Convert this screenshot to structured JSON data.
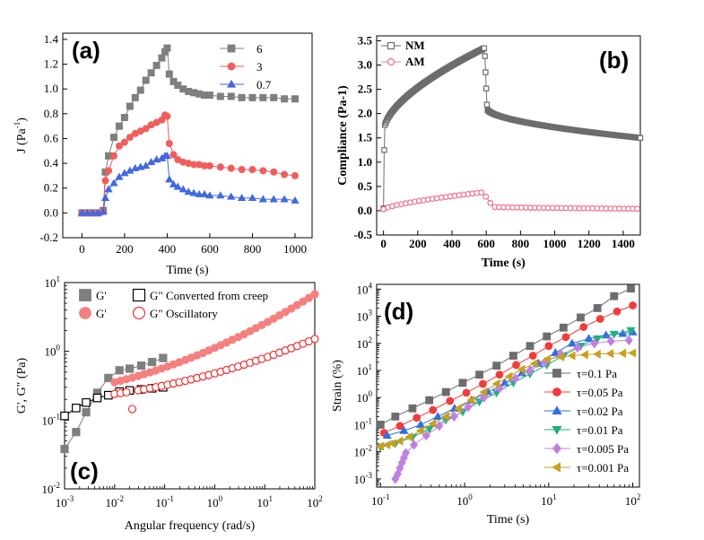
{
  "chart_data": [
    {
      "panel": "(a)",
      "type": "line",
      "xlabel": "Time (s)",
      "ylabel": "J (Pa",
      "ylabel_sup": "-1",
      "ylabel_end": ")",
      "xlim": [
        -90,
        1080
      ],
      "ylim": [
        -0.2,
        1.45
      ],
      "xticks": [
        0,
        200,
        400,
        600,
        800,
        1000
      ],
      "yticks": [
        -0.2,
        0.0,
        0.2,
        0.4,
        0.6,
        0.8,
        1.0,
        1.2,
        1.4
      ],
      "ytick_labels": [
        "-0.2",
        "0.0",
        "0.2",
        "0.4",
        "0.6",
        "0.8",
        "1.0",
        "1.2",
        "1.4"
      ],
      "legend_position": "top-right",
      "series": [
        {
          "name": "6",
          "color": "#7f7f7f",
          "marker": "square",
          "x": [
            0,
            25,
            50,
            75,
            100,
            110,
            125,
            150,
            175,
            200,
            225,
            250,
            275,
            300,
            325,
            350,
            375,
            390,
            400,
            410,
            430,
            450,
            475,
            500,
            525,
            550,
            575,
            600,
            650,
            700,
            750,
            800,
            850,
            900,
            950,
            1000
          ],
          "y": [
            0.0,
            0.0,
            0.0,
            0.0,
            0.02,
            0.33,
            0.46,
            0.61,
            0.7,
            0.77,
            0.86,
            0.93,
            0.99,
            1.07,
            1.13,
            1.19,
            1.25,
            1.3,
            1.33,
            1.12,
            1.06,
            1.03,
            1.0,
            0.98,
            0.97,
            0.96,
            0.95,
            0.95,
            0.94,
            0.94,
            0.93,
            0.93,
            0.93,
            0.93,
            0.92,
            0.92
          ]
        },
        {
          "name": "3",
          "color": "#f05d5d",
          "marker": "circle",
          "x": [
            0,
            25,
            50,
            75,
            100,
            110,
            125,
            150,
            175,
            200,
            225,
            250,
            275,
            300,
            325,
            350,
            375,
            390,
            400,
            410,
            430,
            450,
            475,
            500,
            525,
            550,
            575,
            600,
            650,
            700,
            750,
            800,
            850,
            900,
            950,
            1000
          ],
          "y": [
            0.0,
            0.0,
            0.0,
            0.0,
            0.01,
            0.26,
            0.34,
            0.46,
            0.54,
            0.57,
            0.61,
            0.64,
            0.66,
            0.68,
            0.71,
            0.73,
            0.75,
            0.79,
            0.78,
            0.56,
            0.47,
            0.43,
            0.41,
            0.4,
            0.39,
            0.39,
            0.38,
            0.38,
            0.37,
            0.36,
            0.35,
            0.35,
            0.34,
            0.33,
            0.31,
            0.3
          ]
        },
        {
          "name": "0.7",
          "color": "#4169e1",
          "marker": "triangle-up",
          "x": [
            0,
            25,
            50,
            75,
            100,
            110,
            125,
            150,
            175,
            200,
            225,
            250,
            275,
            300,
            325,
            350,
            375,
            390,
            400,
            410,
            430,
            450,
            475,
            500,
            525,
            550,
            575,
            600,
            650,
            700,
            750,
            800,
            850,
            900,
            950,
            1000
          ],
          "y": [
            0.0,
            0.0,
            0.0,
            0.0,
            0.01,
            0.12,
            0.19,
            0.24,
            0.29,
            0.32,
            0.34,
            0.36,
            0.37,
            0.38,
            0.41,
            0.43,
            0.44,
            0.46,
            0.46,
            0.27,
            0.23,
            0.21,
            0.19,
            0.17,
            0.16,
            0.15,
            0.15,
            0.14,
            0.14,
            0.13,
            0.12,
            0.12,
            0.11,
            0.11,
            0.11,
            0.1
          ]
        }
      ]
    },
    {
      "panel": "(b)",
      "type": "line",
      "xlabel": "Time (s)",
      "ylabel": "Compliance (Pa-1)",
      "xlim": [
        -40,
        1500
      ],
      "ylim": [
        -0.5,
        3.6
      ],
      "xticks": [
        0,
        200,
        400,
        600,
        800,
        1000,
        1200,
        1400
      ],
      "yticks": [
        -0.5,
        0.0,
        0.5,
        1.0,
        1.5,
        2.0,
        2.5,
        3.0,
        3.5
      ],
      "ytick_labels": [
        "-0.5",
        "0.0",
        "0.5",
        "1.0",
        "1.5",
        "2.0",
        "2.5",
        "3.0",
        "3.5"
      ],
      "legend_position": "top-left",
      "series": [
        {
          "name": "NM",
          "color": "#6d6d6d",
          "marker": "square-open"
        },
        {
          "name": "AM",
          "color": "#f07088",
          "marker": "circle-open"
        }
      ]
    },
    {
      "panel": "(c)",
      "type": "scatter",
      "xlabel": "Angular frequency (rad/s)",
      "ylabel": "G', G\" (Pa)",
      "xscale": "log",
      "yscale": "log",
      "xlim": [
        0.001,
        100
      ],
      "ylim": [
        0.01,
        10
      ],
      "xticks": [
        0.001,
        0.01,
        0.1,
        1,
        10,
        100
      ],
      "xtick_base": [
        "10",
        "10",
        "10",
        "10",
        "10",
        "10"
      ],
      "xtick_exp": [
        "-3",
        "-2",
        "-1",
        "0",
        "1",
        "2"
      ],
      "yticks": [
        0.01,
        0.1,
        1,
        10
      ],
      "ytick_base": [
        "10",
        "10",
        "10",
        "10"
      ],
      "ytick_exp": [
        "-2",
        "-1",
        "0",
        "1"
      ],
      "legend_position": "top-left",
      "series": [
        {
          "name": "G'",
          "color": "#7f7f7f",
          "marker": "square",
          "x": [
            0.001,
            0.0017,
            0.0027,
            0.0045,
            0.0075,
            0.0125,
            0.02,
            0.034,
            0.056,
            0.093
          ],
          "y": [
            0.038,
            0.067,
            0.13,
            0.25,
            0.41,
            0.53,
            0.56,
            0.62,
            0.7,
            0.8
          ]
        },
        {
          "name": "G\" Converted from creep",
          "color": "#000000",
          "marker": "square-open",
          "x": [
            0.001,
            0.0017,
            0.0027,
            0.0045,
            0.0075,
            0.0125,
            0.02,
            0.034,
            0.056,
            0.093
          ],
          "y": [
            0.115,
            0.15,
            0.18,
            0.21,
            0.23,
            0.26,
            0.27,
            0.28,
            0.29,
            0.3
          ]
        },
        {
          "name": "G'",
          "color": "#f58080",
          "marker": "circle"
        },
        {
          "name": "G\" Oscillatory",
          "color": "#ee3030",
          "marker": "circle-open"
        }
      ]
    },
    {
      "panel": "(d)",
      "type": "line",
      "xlabel": "Time (s)",
      "ylabel": "Strain (%)",
      "xscale": "log",
      "yscale": "log",
      "xlim": [
        0.09,
        120
      ],
      "ylim": [
        0.0005,
        15000
      ],
      "xticks": [
        0.1,
        1,
        10,
        100
      ],
      "xtick_base": [
        "10",
        "10",
        "10",
        "10"
      ],
      "xtick_exp": [
        "-1",
        "0",
        "1",
        "2"
      ],
      "yticks": [
        0.001,
        0.01,
        0.1,
        1,
        10,
        100,
        1000,
        10000
      ],
      "ytick_base": [
        "10",
        "10",
        "10",
        "10",
        "10",
        "10",
        "10",
        "10"
      ],
      "ytick_exp": [
        "-3",
        "-2",
        "-1",
        "0",
        "1",
        "2",
        "3",
        "4"
      ],
      "legend_position": "bottom-right",
      "series": [
        {
          "name": "τ=0.1 Pa",
          "color": "#6d6d6d",
          "marker": "square",
          "x": [
            0.1,
            0.15,
            0.24,
            0.38,
            0.6,
            0.95,
            1.5,
            2.4,
            3.8,
            6,
            9.5,
            15,
            24,
            38,
            60,
            95
          ],
          "y": [
            0.1,
            0.2,
            0.4,
            0.8,
            1.6,
            3.5,
            7,
            15,
            35,
            80,
            180,
            380,
            900,
            2000,
            5500,
            10500
          ]
        },
        {
          "name": "τ=0.05 Pa",
          "color": "#f03c3c",
          "marker": "circle",
          "x": [
            0.11,
            0.17,
            0.27,
            0.42,
            0.67,
            1.05,
            1.65,
            2.6,
            4.1,
            6.5,
            10,
            16,
            26,
            41,
            65,
            100
          ],
          "y": [
            0.05,
            0.09,
            0.18,
            0.35,
            0.75,
            1.5,
            3.2,
            7,
            16,
            35,
            80,
            170,
            400,
            800,
            1500,
            2500
          ]
        },
        {
          "name": "τ=0.02 Pa",
          "color": "#2f6fe0",
          "marker": "triangle-up",
          "x": [
            0.12,
            0.19,
            0.3,
            0.48,
            0.76,
            1.2,
            1.9,
            3,
            4.8,
            7.6,
            12,
            19,
            30,
            48,
            76,
            100
          ],
          "y": [
            0.04,
            0.06,
            0.1,
            0.2,
            0.4,
            0.8,
            1.6,
            3.5,
            8,
            18,
            45,
            100,
            150,
            200,
            230,
            260
          ]
        },
        {
          "name": "τ=0.01 Pa",
          "color": "#20b080",
          "marker": "triangle-down",
          "x": [
            0.1,
            0.15,
            0.24,
            0.38,
            0.6,
            0.95,
            1.5,
            2.4,
            3.8,
            6,
            9.5,
            15,
            24,
            38,
            60,
            95
          ],
          "y": [
            0.015,
            0.02,
            0.035,
            0.07,
            0.15,
            0.3,
            0.7,
            1.5,
            3.5,
            7.5,
            16,
            35,
            80,
            150,
            220,
            300
          ]
        },
        {
          "name": "τ=0.005 Pa",
          "color": "#c080e0",
          "marker": "diamond",
          "x": [
            0.15,
            0.16,
            0.17,
            0.18,
            0.19,
            0.2,
            0.25,
            0.35,
            0.5,
            0.75,
            1.1,
            1.7,
            2.6,
            4,
            6,
            9,
            14,
            22,
            35,
            55,
            90
          ],
          "y": [
            0.001,
            0.0015,
            0.0025,
            0.004,
            0.006,
            0.009,
            0.018,
            0.04,
            0.09,
            0.2,
            0.45,
            1,
            2.2,
            5,
            10,
            20,
            40,
            70,
            100,
            120,
            130
          ]
        },
        {
          "name": "τ=0.001 Pa",
          "color": "#c8a020",
          "marker": "triangle-left",
          "x": [
            0.1,
            0.12,
            0.14,
            0.17,
            0.22,
            0.3,
            0.42,
            0.6,
            0.85,
            1.2,
            1.7,
            2.4,
            3.4,
            4.8,
            6.8,
            9.6,
            14,
            19,
            27,
            38,
            54,
            76,
            100
          ],
          "y": [
            0.016,
            0.018,
            0.02,
            0.025,
            0.035,
            0.06,
            0.11,
            0.2,
            0.4,
            0.8,
            1.6,
            3.2,
            6,
            11,
            18,
            26,
            32,
            35,
            38,
            40,
            42,
            43,
            44
          ]
        }
      ]
    }
  ]
}
